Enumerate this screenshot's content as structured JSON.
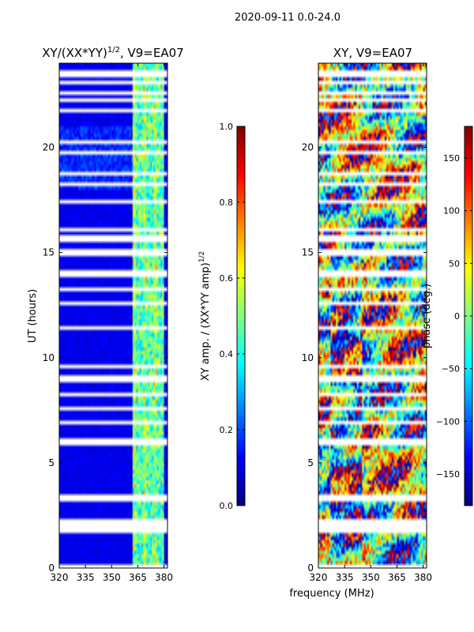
{
  "figure": {
    "suptitle": "2020-09-11 0.0-24.0",
    "xlabel": "frequency (MHz)"
  },
  "chart_data": [
    {
      "type": "heatmap",
      "title_main": "XY/(XX*YY)",
      "title_exp": "1/2",
      "title_tail": ", V9=EA07",
      "ylabel": "UT (hours)",
      "x": {
        "range": [
          320,
          382
        ],
        "ticks": [
          320,
          335,
          350,
          365,
          380
        ]
      },
      "y": {
        "range": [
          0,
          24
        ],
        "ticks": [
          0,
          5,
          10,
          15,
          20
        ]
      },
      "colorbar": {
        "label_main": "XY amp. / (XX*YY amp)",
        "label_exp": "1/2",
        "range": [
          0.0,
          1.0
        ],
        "ticks": [
          0.0,
          0.2,
          0.4,
          0.6,
          0.8,
          1.0
        ],
        "tick_labels": [
          "0.0",
          "0.2",
          "0.4",
          "0.6",
          "0.8",
          "1.0"
        ]
      },
      "colormap": "jet",
      "pattern": {
        "background_value": 0.08,
        "active_band_mhz": [
          362,
          380
        ],
        "active_band_values": [
          0.3,
          0.6
        ],
        "flagged_hours": [
          0.1,
          1.8,
          2.0,
          2.3,
          3.2,
          3.4,
          5.85,
          5.95,
          6.05,
          6.9,
          7.6,
          8.2,
          8.85,
          8.95,
          9.05,
          9.6,
          11.4,
          12.6,
          13.2,
          14.0,
          15.0,
          15.6,
          15.75,
          16.1,
          17.4,
          18.2,
          18.7,
          19.8,
          20.2,
          21.7,
          22.3,
          22.6,
          23.1,
          23.5
        ]
      }
    },
    {
      "type": "heatmap",
      "title_main": "XY, V9=EA07",
      "x": {
        "range": [
          320,
          382
        ],
        "ticks": [
          320,
          335,
          350,
          365,
          380
        ]
      },
      "y": {
        "range": [
          0,
          24
        ],
        "ticks": [
          0,
          5,
          10,
          15,
          20
        ]
      },
      "colorbar": {
        "label_main": "phase (deg.)",
        "range": [
          -180,
          180
        ],
        "ticks": [
          -150,
          -100,
          -50,
          0,
          50,
          100,
          150
        ],
        "tick_labels": [
          "−150",
          "−100",
          "−50",
          "0",
          "50",
          "100",
          "150"
        ]
      },
      "colormap": "jet",
      "pattern": {
        "phase_drift": "noisy phase varying with frequency and time",
        "flagged_hours": [
          0.1,
          1.8,
          2.0,
          2.3,
          3.2,
          3.4,
          5.85,
          5.95,
          6.05,
          6.9,
          7.6,
          8.2,
          8.85,
          8.95,
          9.05,
          9.6,
          11.4,
          12.6,
          13.2,
          14.0,
          15.0,
          15.6,
          15.75,
          16.1,
          17.4,
          18.2,
          18.7,
          19.8,
          20.2,
          21.7,
          22.3,
          22.6,
          23.1,
          23.5
        ]
      }
    }
  ]
}
